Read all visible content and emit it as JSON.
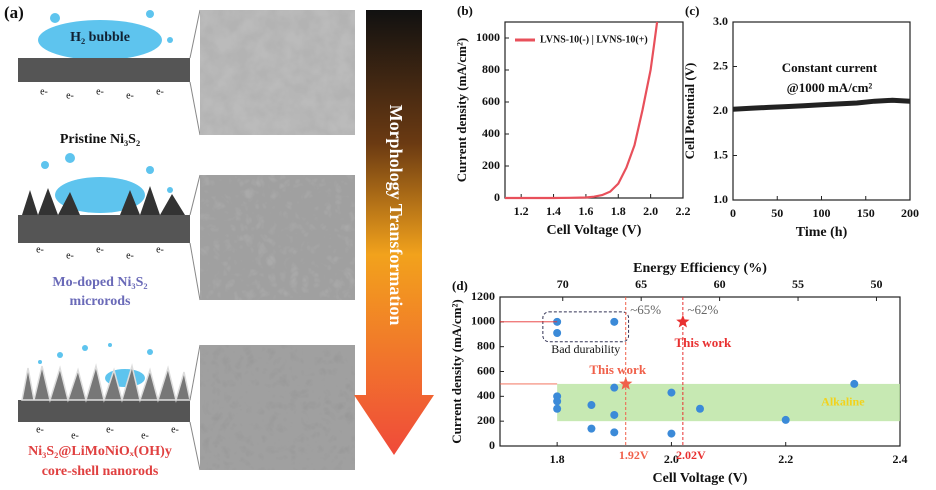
{
  "panel_a": {
    "label": "(a)",
    "bubble_label": "H₂ bubble",
    "electron": "e-",
    "arrow_text": "Morphology Transformation",
    "stages": [
      {
        "lines": [
          "Pristine Ni₃S₂"
        ]
      },
      {
        "lines": [
          "Mo-doped Ni₃S₂",
          "microrods"
        ]
      },
      {
        "lines": [
          "Ni₃S₂@LiMoNiOₓ(OH)y",
          "core-shell nanorods"
        ]
      }
    ]
  },
  "chart_data": [
    {
      "type": "line",
      "label": "(b)",
      "x_label": "Cell Voltage (V)",
      "y_label": "Current density (mA/cm²)",
      "x": [
        1.1,
        1.2,
        1.3,
        1.4,
        1.5,
        1.6,
        1.65,
        1.7,
        1.75,
        1.8,
        1.85,
        1.9,
        1.95,
        2.0,
        2.02,
        2.04
      ],
      "series": [
        {
          "name": "LVNS-10(-) | LVNS-10(+)",
          "color": "#e8505b",
          "values": [
            0,
            0,
            0,
            0,
            1,
            3,
            8,
            18,
            40,
            90,
            190,
            330,
            550,
            800,
            950,
            1100
          ]
        }
      ],
      "xlim": [
        1.1,
        2.2
      ],
      "xticks": [
        1.2,
        1.4,
        1.6,
        1.8,
        {
          "value": 2,
          "label": "2.0"
        },
        2.2
      ],
      "ylim": [
        0,
        1100
      ],
      "yticks": [
        0,
        200,
        400,
        600,
        800,
        1000
      ],
      "legend": "upper left"
    },
    {
      "type": "line",
      "label": "(c)",
      "x_label": "Time (h)",
      "y_label": "Cell Potential (V)",
      "annotations": [
        "Constant current",
        "@1000 mA/cm²"
      ],
      "x": [
        0,
        20,
        40,
        60,
        80,
        100,
        120,
        140,
        160,
        180,
        200
      ],
      "series": [
        {
          "name": null,
          "color": "#222222",
          "values": [
            2.02,
            2.03,
            2.04,
            2.05,
            2.06,
            2.07,
            2.08,
            2.09,
            2.11,
            2.12,
            2.11
          ]
        }
      ],
      "xlim": [
        0,
        200
      ],
      "xticks": [
        0,
        50,
        100,
        150,
        200
      ],
      "ylim": [
        1,
        3
      ],
      "yticks": [
        {
          "value": 1,
          "label": "1.0"
        },
        1.5,
        {
          "value": 2,
          "label": "2.0"
        },
        2.5,
        {
          "value": 3,
          "label": "3.0"
        }
      ]
    },
    {
      "type": "scatter",
      "label": "(d)",
      "x_label": "Cell Voltage (V)",
      "y_label": "Current density (mA/cm²)",
      "x2_label": "Energy Efficiency (%)",
      "color": "#3b8ad8",
      "box_label": "Bad durability",
      "x": [
        1.8,
        1.8,
        1.8,
        1.8,
        1.8,
        1.86,
        1.86,
        1.9,
        1.9,
        1.9,
        1.9,
        2.0,
        2.0,
        2.05,
        2.2,
        2.32
      ],
      "values": [
        1000,
        910,
        400,
        360,
        300,
        330,
        140,
        1000,
        470,
        250,
        110,
        430,
        100,
        300,
        210,
        500
      ],
      "band": {
        "label": "Alkaline",
        "xlim": [
          1.8,
          2.4
        ],
        "ylim": [
          200,
          500
        ],
        "color": "#b9e3a0"
      },
      "highlights": [
        {
          "x": 1.92,
          "value": 500,
          "label": "This work",
          "voltage_label": "1.92V",
          "efficiency_label": "~65%",
          "color": "#f0604a"
        },
        {
          "x": 2.02,
          "value": 1000,
          "label": "This work",
          "voltage_label": "2.02V",
          "efficiency_label": "~62%",
          "color": "#e83030"
        }
      ],
      "xlim": [
        1.7,
        2.4
      ],
      "xticks": [
        1.8,
        {
          "value": 2,
          "label": "2.0"
        },
        2.2,
        2.4
      ],
      "x2lim": [
        74,
        48.5
      ],
      "x2ticks": [
        70,
        65,
        60,
        55,
        50
      ],
      "ylim": [
        0,
        1200
      ],
      "yticks": [
        0,
        200,
        400,
        600,
        800,
        1000,
        1200
      ]
    }
  ]
}
